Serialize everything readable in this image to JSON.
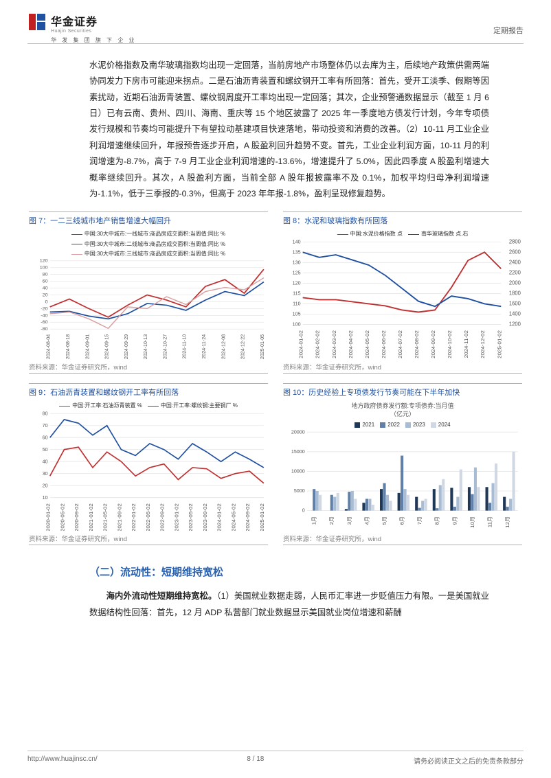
{
  "header": {
    "company_cn": "华金证券",
    "company_en": "Huajin Securities",
    "parent_line": "华 发 集 团 旗 下 企 业",
    "report_type": "定期报告",
    "logo_colors": {
      "red": "#c02020",
      "blue": "#2050a0"
    }
  },
  "body_paragraph": "水泥价格指数及南华玻璃指数均出现一定回落，当前房地产市场整体仍以去库为主，后续地产政策供需两端协同发力下房市可能迎来拐点。二是石油沥青装置和螺纹钢开工率有所回落：首先，受开工淡季、假期等因素扰动，近期石油沥青装置、螺纹钢周度开工率均出现一定回落；其次，企业预警通数据显示（截至 1 月 6 日）已有云南、贵州、四川、海南、重庆等 15 个地区披露了 2025 年一季度地方债发行计划，今年专项债发行规模和节奏均可能提升下有望拉动基建项目快速落地，带动投资和消费的改善。（2）10-11 月工业企业利润增速继续回升，年报预告逐步开启，A 股盈利回升趋势不变。首先，工业企业利润方面，10-11 月的利润增速为-8.7%，高于 7-9 月工业企业利润增速的-13.6%，增速提升了 5.0%，因此四季度 A 股盈利增速大概率继续回升。其次，A 股盈利方面，当前全部 A 股年报披露率不及 0.1%，加权平均归母净利润增速为-1.1%，低于三季报的-0.3%，但高于 2023 年年报-1.8%，盈利呈现修复趋势。",
  "charts": {
    "c7": {
      "title": "图 7：一二三线城市地产销售增速大幅回升",
      "source": "资料来源：华金证券研究所，wind",
      "type": "line",
      "legend": [
        {
          "label": "中国:30大中城市:一线城市:商品房成交面积:当周值:同比 %",
          "color": "#c03030"
        },
        {
          "label": "中国:30大中城市:二线城市:商品房成交面积:当周值:同比 %",
          "color": "#2050a0"
        },
        {
          "label": "中国:30大中城市:三线城市:商品房成交面积:当周值:同比 %",
          "color": "#d8a0a0"
        }
      ],
      "x_labels": [
        "2024-08-04",
        "2024-08-18",
        "2024-09-01",
        "2024-09-15",
        "2024-09-29",
        "2024-10-13",
        "2024-10-27",
        "2024-11-10",
        "2024-11-24",
        "2024-12-08",
        "2024-12-22",
        "2025-01-05"
      ],
      "y_ticks": [
        -80,
        -60,
        -40,
        -20,
        0,
        20,
        40,
        60,
        80,
        100,
        120
      ],
      "series": [
        {
          "color": "#c03030",
          "width": 1.8,
          "values": [
            -15,
            8,
            -20,
            -45,
            -10,
            20,
            5,
            -15,
            45,
            65,
            25,
            95
          ]
        },
        {
          "color": "#2050a0",
          "width": 1.8,
          "values": [
            -30,
            -28,
            -42,
            -50,
            -35,
            -5,
            -10,
            -25,
            5,
            30,
            18,
            58
          ]
        },
        {
          "color": "#d8a0a0",
          "width": 1.5,
          "values": [
            -35,
            -30,
            -50,
            -78,
            -15,
            -20,
            15,
            -8,
            30,
            42,
            35,
            70
          ]
        }
      ],
      "ylim": [
        -80,
        120
      ],
      "grid_color": "#e6e6e6"
    },
    "c8": {
      "title": "图 8：水泥和玻璃指数有所回落",
      "source": "资料来源：华金证券研究所，wind",
      "type": "line-dual",
      "legend": [
        {
          "label": "中国:水泥价格指数 点",
          "color": "#c03030"
        },
        {
          "label": "南华玻璃指数 点,右",
          "color": "#2050a0"
        }
      ],
      "x_labels": [
        "2024-01-02",
        "2024-02-02",
        "2024-03-02",
        "2024-04-02",
        "2024-05-02",
        "2024-06-02",
        "2024-07-02",
        "2024-08-02",
        "2024-09-02",
        "2024-10-02",
        "2024-11-02",
        "2024-12-02",
        "2025-01-02"
      ],
      "y_left_ticks": [
        100,
        105,
        110,
        115,
        120,
        125,
        130,
        135,
        140
      ],
      "y_right_ticks": [
        1200,
        1400,
        1600,
        1800,
        2000,
        2200,
        2400,
        2600,
        2800
      ],
      "series_left": {
        "color": "#c03030",
        "width": 1.8,
        "values": [
          113,
          112,
          112,
          111,
          110,
          109,
          107,
          106,
          107,
          118,
          131,
          135,
          127
        ]
      },
      "series_right": {
        "color": "#2050a0",
        "width": 1.8,
        "values": [
          2600,
          2500,
          2550,
          2450,
          2350,
          2150,
          1900,
          1650,
          1550,
          1750,
          1700,
          1600,
          1550
        ]
      },
      "ylim_left": [
        100,
        140
      ],
      "ylim_right": [
        1200,
        2800
      ],
      "grid_color": "#e6e6e6"
    },
    "c9": {
      "title": "图 9：石油沥青装置和螺纹钢开工率有所回落",
      "source": "资料来源：华金证券研究所，wind",
      "type": "line",
      "legend": [
        {
          "label": "中国:开工率:石油沥青装置 %",
          "color": "#c03030"
        },
        {
          "label": "中国:开工率:螺纹钢:主要钢厂 %",
          "color": "#2050a0"
        }
      ],
      "x_labels": [
        "2020-01-02",
        "2020-05-02",
        "2020-09-02",
        "2021-01-02",
        "2021-05-02",
        "2021-09-02",
        "2022-01-02",
        "2022-05-02",
        "2022-09-02",
        "2023-01-02",
        "2023-05-02",
        "2023-09-02",
        "2024-01-02",
        "2024-05-02",
        "2024-09-02",
        "2025-01-02"
      ],
      "y_ticks": [
        10,
        20,
        30,
        40,
        50,
        60,
        70,
        80
      ],
      "series": [
        {
          "color": "#c03030",
          "width": 1.6,
          "values": [
            28,
            50,
            52,
            35,
            48,
            40,
            28,
            35,
            38,
            25,
            35,
            34,
            26,
            30,
            32,
            22
          ]
        },
        {
          "color": "#2050a0",
          "width": 1.6,
          "values": [
            60,
            75,
            72,
            62,
            70,
            50,
            45,
            55,
            50,
            42,
            55,
            48,
            40,
            48,
            42,
            35
          ]
        }
      ],
      "ylim": [
        10,
        80
      ],
      "grid_color": "#e6e6e6"
    },
    "c10": {
      "title": "图 10：历史经验上专项债发行节奏可能在下半年加快",
      "source": "资料来源：华金证券研究所，wind",
      "type": "grouped-bar",
      "subtitle": "地方政府债券发行额:专项债券:当月值\n（亿元）",
      "categories": [
        "1月",
        "2月",
        "3月",
        "4月",
        "5月",
        "6月",
        "7月",
        "8月",
        "9月",
        "10月",
        "11月",
        "12月"
      ],
      "y_ticks": [
        0,
        5000,
        10000,
        15000,
        20000
      ],
      "groups": [
        {
          "label": "2021",
          "color": "#203858",
          "values": [
            0,
            0,
            400,
            2000,
            5500,
            4500,
            3500,
            5500,
            5800,
            6000,
            6000,
            3500
          ]
        },
        {
          "label": "2022",
          "color": "#6080a8",
          "values": [
            5500,
            4000,
            4800,
            3000,
            7000,
            14000,
            700,
            600,
            1000,
            4200,
            2000,
            1000
          ]
        },
        {
          "label": "2023",
          "color": "#a8bcd4",
          "values": [
            5000,
            3500,
            5000,
            3000,
            4000,
            5500,
            2500,
            6500,
            3500,
            11000,
            7000,
            3000
          ]
        },
        {
          "label": "2024",
          "color": "#d0d8e4",
          "values": [
            4000,
            4500,
            3000,
            1500,
            2500,
            4000,
            3000,
            8000,
            10500,
            6000,
            12000,
            15000
          ]
        }
      ],
      "ylim": [
        0,
        20000
      ],
      "grid_color": "#e6e6e6"
    }
  },
  "section2": {
    "heading": "（二）流动性：短期维持宽松",
    "body_lead_bold": "海内外流动性短期维持宽松。",
    "body_rest": "（1）美国就业数据走弱，人民币汇率进一步贬值压力有限。一是美国就业数据结构性回落：首先，12 月 ADP 私营部门就业数据显示美国就业岗位增速和薪酬"
  },
  "footer": {
    "url": "http://www.huajinsc.cn/",
    "page": "8 / 18",
    "disclaimer": "请务必阅读正文之后的免责条款部分"
  }
}
